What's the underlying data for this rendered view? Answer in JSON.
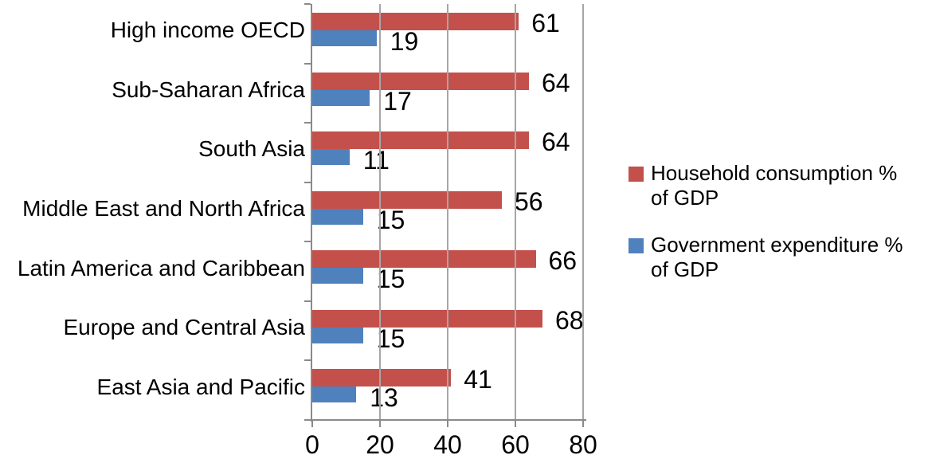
{
  "chart_data": {
    "type": "bar",
    "orientation": "horizontal",
    "title": "",
    "xlabel": "",
    "ylabel": "",
    "categories": [
      "High income OECD",
      "Sub-Saharan Africa",
      "South Asia",
      "Middle East and North Africa",
      "Latin America and Caribbean",
      "Europe and Central Asia",
      "East Asia and Pacific"
    ],
    "series": [
      {
        "name": "Household consumption % of GDP",
        "color": "#C4504C",
        "values": [
          61,
          64,
          64,
          56,
          66,
          68,
          41
        ]
      },
      {
        "name": "Government expenditure % of GDP",
        "color": "#4F81BD",
        "values": [
          19,
          17,
          11,
          15,
          15,
          15,
          13
        ]
      }
    ],
    "xlim": [
      0,
      80
    ],
    "x_ticks": [
      0,
      20,
      40,
      60,
      80
    ],
    "grid": "vertical-gridlines-on",
    "data_labels": true,
    "legend_position": "right"
  },
  "legend": {
    "entries": [
      {
        "line1": "Household consumption %",
        "line2": "of GDP",
        "color": "#C4504C"
      },
      {
        "line1": "Government expenditure %",
        "line2": "of GDP",
        "color": "#4F81BD"
      }
    ]
  },
  "colors": {
    "household_series": "#C4504C",
    "government_series": "#4F81BD",
    "gridline": "#A6A6A6",
    "axis": "#8A8A8A",
    "text": "#000000",
    "background": "#FFFFFF"
  }
}
